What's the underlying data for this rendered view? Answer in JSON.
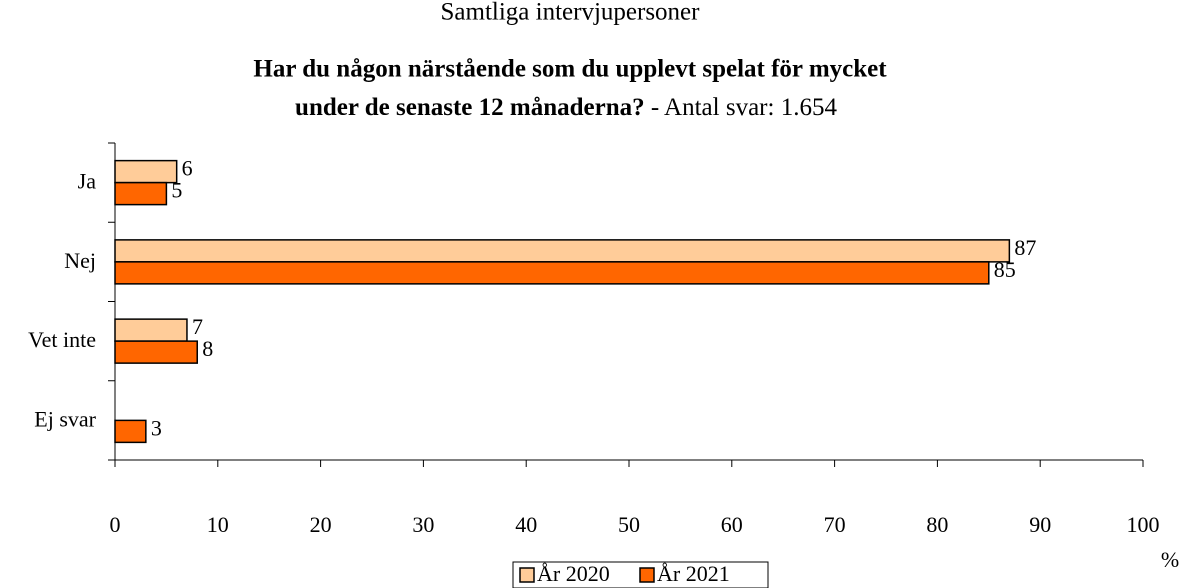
{
  "chart_data": {
    "type": "hbar",
    "title": "Samtliga intervjupersoner",
    "subtitle": [
      "Har du någon närstående som du upplevt spelat för mycket",
      "under de senaste 12 månaderna?"
    ],
    "subtitle_note": "- Antal svar: 1.654",
    "x_label": "%",
    "categories": [
      "Ja",
      "Nej",
      "Vet inte",
      "Ej svar"
    ],
    "series": [
      {
        "name": "År 2020",
        "color": "#FFCC99",
        "values": [
          6,
          87,
          7,
          null
        ]
      },
      {
        "name": "År 2021",
        "color": "#FF6600",
        "values": [
          5,
          85,
          8,
          3
        ]
      }
    ],
    "xlim": [
      0,
      100
    ],
    "xticks": [
      0,
      10,
      20,
      30,
      40,
      50,
      60,
      70,
      80,
      90,
      100
    ],
    "legend": "bottom"
  }
}
